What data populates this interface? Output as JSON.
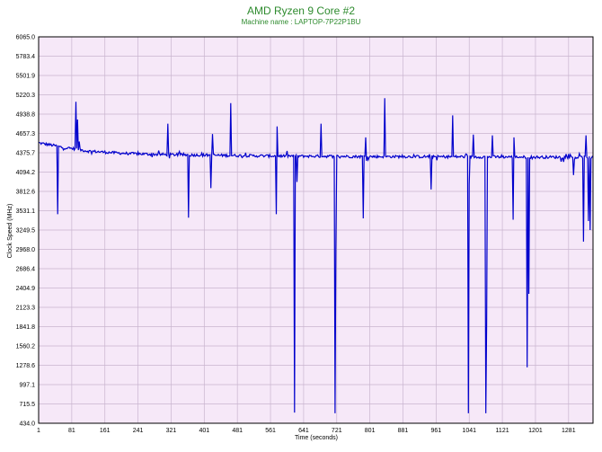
{
  "chart_data": {
    "type": "line",
    "title": "AMD Ryzen 9 Core #2",
    "subtitle": "Machine name : LAPTOP-7P22P1BU",
    "xlabel": "Time (seconds)",
    "ylabel": "Clock Speed (MHz)",
    "xlim": [
      1,
      1340
    ],
    "ylim": [
      434.0,
      6065.0
    ],
    "x_ticks": [
      "1",
      "81",
      "161",
      "241",
      "321",
      "401",
      "481",
      "561",
      "641",
      "721",
      "801",
      "881",
      "961",
      "1041",
      "1121",
      "1201",
      "1281"
    ],
    "y_ticks": [
      "434.0",
      "715.5",
      "997.1",
      "1278.6",
      "1560.2",
      "1841.8",
      "2123.3",
      "2404.9",
      "2686.4",
      "2968.0",
      "3249.5",
      "3531.1",
      "3812.6",
      "4094.2",
      "4375.7",
      "4657.3",
      "4938.8",
      "5220.3",
      "5501.9",
      "5783.4",
      "6065.0"
    ],
    "grid": true,
    "legend": "none",
    "colors": {
      "line": "#0000cc",
      "plot_background": "#f6e8f8",
      "grid": "#c9b5cf",
      "title": "#2e8b2e"
    },
    "series": [
      {
        "baseline": [
          [
            1,
            4520
          ],
          [
            20,
            4500
          ],
          [
            40,
            4480
          ],
          [
            60,
            4450
          ],
          [
            80,
            4440
          ],
          [
            100,
            4420
          ],
          [
            120,
            4400
          ],
          [
            160,
            4385
          ],
          [
            200,
            4370
          ],
          [
            240,
            4360
          ],
          [
            300,
            4350
          ],
          [
            360,
            4345
          ],
          [
            420,
            4340
          ],
          [
            480,
            4335
          ],
          [
            540,
            4330
          ],
          [
            600,
            4330
          ],
          [
            660,
            4325
          ],
          [
            720,
            4325
          ],
          [
            780,
            4320
          ],
          [
            840,
            4320
          ],
          [
            900,
            4320
          ],
          [
            960,
            4318
          ],
          [
            1020,
            4318
          ],
          [
            1080,
            4315
          ],
          [
            1140,
            4315
          ],
          [
            1200,
            4312
          ],
          [
            1260,
            4312
          ],
          [
            1300,
            4310
          ],
          [
            1340,
            4310
          ]
        ],
        "spikes": [
          [
            48,
            3480
          ],
          [
            91,
            5120
          ],
          [
            95,
            4860
          ],
          [
            100,
            4540
          ],
          [
            313,
            4800
          ],
          [
            363,
            3430
          ],
          [
            417,
            3860
          ],
          [
            422,
            4650
          ],
          [
            465,
            5100
          ],
          [
            575,
            3480
          ],
          [
            578,
            4760
          ],
          [
            620,
            590
          ],
          [
            625,
            3950
          ],
          [
            683,
            4800
          ],
          [
            718,
            580
          ],
          [
            720,
            2990
          ],
          [
            786,
            3420
          ],
          [
            792,
            4600
          ],
          [
            838,
            5170
          ],
          [
            950,
            3840
          ],
          [
            1001,
            4920
          ],
          [
            1039,
            580
          ],
          [
            1041,
            3910
          ],
          [
            1051,
            4640
          ],
          [
            1081,
            580
          ],
          [
            1083,
            1870
          ],
          [
            1097,
            4630
          ],
          [
            1147,
            3400
          ],
          [
            1150,
            4600
          ],
          [
            1182,
            1250
          ],
          [
            1185,
            2320
          ],
          [
            1293,
            4050
          ],
          [
            1318,
            3080
          ],
          [
            1324,
            4630
          ],
          [
            1329,
            3380
          ],
          [
            1334,
            3250
          ]
        ]
      }
    ]
  }
}
